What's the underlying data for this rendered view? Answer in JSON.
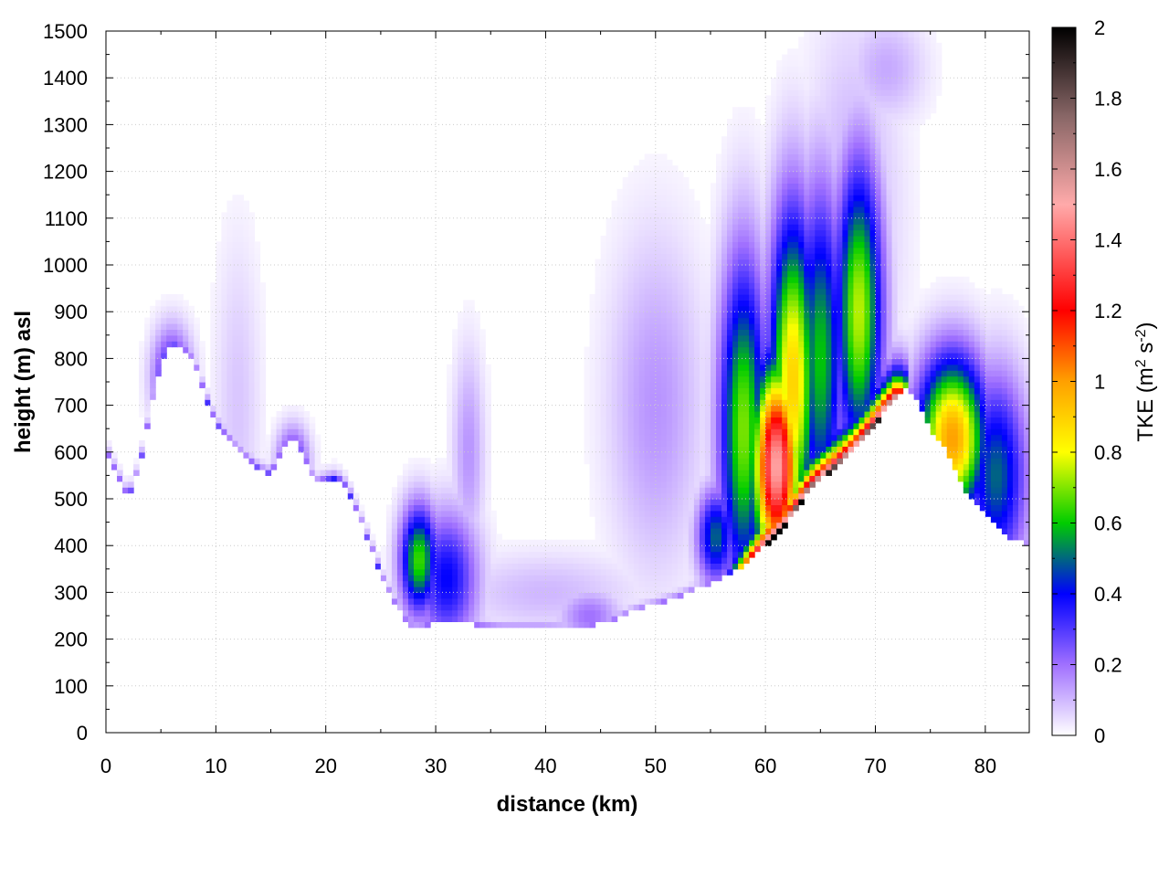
{
  "chart_data": {
    "type": "heatmap",
    "title": "",
    "xlabel": "distance (km)",
    "ylabel": "height (m) asl",
    "xlim": [
      0,
      84
    ],
    "ylim": [
      0,
      1500
    ],
    "x_ticks": [
      0,
      10,
      20,
      30,
      40,
      50,
      60,
      70,
      80
    ],
    "y_ticks": [
      0,
      100,
      200,
      300,
      400,
      500,
      600,
      700,
      800,
      900,
      1000,
      1100,
      1200,
      1300,
      1400,
      1500
    ],
    "grid": true,
    "colorbar": {
      "label_main": "TKE (m",
      "label_sup1": "2",
      "label_mid": " s",
      "label_sup2": "-2",
      "label_end": ")",
      "range": [
        0,
        2
      ],
      "ticks": [
        0,
        0.2,
        0.4,
        0.6,
        0.8,
        1,
        1.2,
        1.4,
        1.6,
        1.8,
        2
      ],
      "colors": [
        {
          "v": 0.0,
          "c": "#ffffff"
        },
        {
          "v": 0.2,
          "c": "#a070ff"
        },
        {
          "v": 0.4,
          "c": "#0000ff"
        },
        {
          "v": 0.6,
          "c": "#00cc00"
        },
        {
          "v": 0.8,
          "c": "#ffff00"
        },
        {
          "v": 1.0,
          "c": "#ffa000"
        },
        {
          "v": 1.2,
          "c": "#ff0000"
        },
        {
          "v": 1.5,
          "c": "#ffaaaa"
        },
        {
          "v": 1.75,
          "c": "#886666"
        },
        {
          "v": 2.0,
          "c": "#000000"
        }
      ]
    },
    "terrain_profile": {
      "x": [
        0,
        2,
        3,
        4,
        5,
        6,
        7,
        8,
        9,
        10,
        12,
        14,
        15,
        16,
        17,
        18,
        19,
        20,
        21,
        22,
        23,
        24,
        25,
        26,
        27,
        28,
        29,
        30,
        32,
        34,
        36,
        38,
        40,
        42,
        44,
        45,
        46,
        48,
        50,
        52,
        54,
        56,
        58,
        60,
        62,
        64,
        66,
        68,
        70,
        72,
        73,
        74,
        75,
        76,
        78,
        80,
        82,
        84
      ],
      "y": [
        600,
        500,
        560,
        680,
        790,
        830,
        820,
        790,
        720,
        660,
        600,
        560,
        550,
        600,
        630,
        590,
        530,
        540,
        545,
        520,
        460,
        400,
        340,
        290,
        250,
        220,
        230,
        235,
        235,
        230,
        225,
        225,
        225,
        222,
        230,
        232,
        240,
        260,
        275,
        290,
        310,
        330,
        360,
        400,
        450,
        520,
        560,
        600,
        660,
        720,
        740,
        700,
        650,
        620,
        520,
        470,
        420,
        400
      ]
    },
    "features": [
      {
        "x": 6,
        "z": 760,
        "sx": 1.2,
        "sz": 70,
        "v": 0.4
      },
      {
        "x": 12,
        "z": 700,
        "sx": 1.5,
        "sz": 250,
        "v": 0.08
      },
      {
        "x": 17,
        "z": 580,
        "sx": 1.0,
        "sz": 50,
        "v": 0.35
      },
      {
        "x": 28.5,
        "z": 370,
        "sx": 1.2,
        "sz": 80,
        "v": 0.65
      },
      {
        "x": 31,
        "z": 330,
        "sx": 2.0,
        "sz": 100,
        "v": 0.4
      },
      {
        "x": 33,
        "z": 600,
        "sx": 1.0,
        "sz": 150,
        "v": 0.15
      },
      {
        "x": 40,
        "z": 300,
        "sx": 6.0,
        "sz": 60,
        "v": 0.1
      },
      {
        "x": 44,
        "z": 250,
        "sx": 2.0,
        "sz": 40,
        "v": 0.2
      },
      {
        "x": 50,
        "z": 700,
        "sx": 3.0,
        "sz": 250,
        "v": 0.15
      },
      {
        "x": 55.5,
        "z": 420,
        "sx": 1.2,
        "sz": 70,
        "v": 0.5
      },
      {
        "x": 58,
        "z": 650,
        "sx": 1.5,
        "sz": 250,
        "v": 0.7
      },
      {
        "x": 61,
        "z": 570,
        "sx": 1.5,
        "sz": 150,
        "v": 1.5
      },
      {
        "x": 62.5,
        "z": 750,
        "sx": 1.5,
        "sz": 250,
        "v": 0.9
      },
      {
        "x": 65,
        "z": 800,
        "sx": 1.5,
        "sz": 250,
        "v": 0.6
      },
      {
        "x": 68.5,
        "z": 900,
        "sx": 1.5,
        "sz": 220,
        "v": 0.75
      },
      {
        "x": 68.0,
        "z": 1100,
        "sx": 3.0,
        "sz": 300,
        "v": 0.12
      },
      {
        "x": 71,
        "z": 1420,
        "sx": 2.5,
        "sz": 80,
        "v": 0.12
      },
      {
        "x": 77,
        "z": 630,
        "sx": 2.2,
        "sz": 120,
        "v": 1.0
      },
      {
        "x": 81,
        "z": 550,
        "sx": 2.0,
        "sz": 150,
        "v": 0.5
      }
    ],
    "surface_band": {
      "x_start": 56,
      "x_end": 73,
      "v": 2.0
    }
  }
}
